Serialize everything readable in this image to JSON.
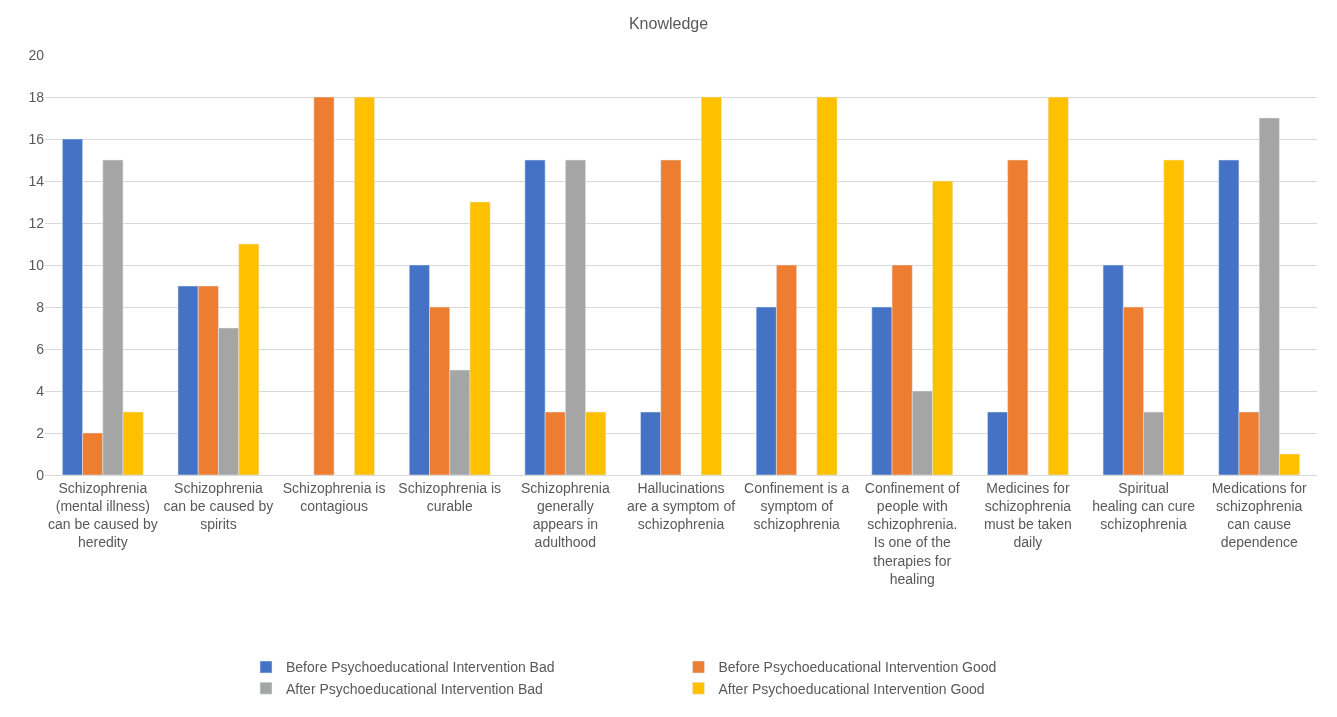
{
  "chart_data": {
    "type": "bar",
    "title": "Knowledge",
    "categories": [
      "Schizophrenia (mental illness) can be caused by heredity",
      "Schizophrenia can be caused by spirits",
      "Schizophrenia is contagious",
      "Schizophrenia is curable",
      "Schizophrenia generally appears in adulthood",
      "Hallucinations are a symptom of schizophrenia",
      "Confinement is a symptom of schizophrenia",
      "Confinement of people with schizophrenia. Is one of the therapies for healing",
      "Medicines for schizophrenia must be taken daily",
      "Spiritual healing can cure schizophrenia",
      "Medications for schizophrenia can cause dependence"
    ],
    "series": [
      {
        "name": "Before Psychoeducational Intervention Bad",
        "color": "#4472c4",
        "values": [
          16,
          9,
          null,
          10,
          15,
          3,
          8,
          8,
          3,
          10,
          15
        ]
      },
      {
        "name": "Before Psychoeducational Intervention Good",
        "color": "#ed7d31",
        "values": [
          2,
          9,
          18,
          8,
          3,
          15,
          10,
          10,
          15,
          8,
          3
        ]
      },
      {
        "name": "After Psychoeducational Intervention Bad",
        "color": "#a5a5a5",
        "values": [
          15,
          7,
          null,
          5,
          15,
          null,
          null,
          4,
          null,
          3,
          17
        ]
      },
      {
        "name": "After Psychoeducational Intervention Good",
        "color": "#ffc000",
        "values": [
          3,
          11,
          18,
          13,
          3,
          18,
          18,
          14,
          18,
          15,
          1
        ]
      }
    ],
    "ylim": [
      0,
      20
    ],
    "yticks": [
      0,
      2,
      4,
      6,
      8,
      10,
      12,
      14,
      16,
      18,
      20
    ],
    "grid": "y",
    "legend": "bottom"
  }
}
